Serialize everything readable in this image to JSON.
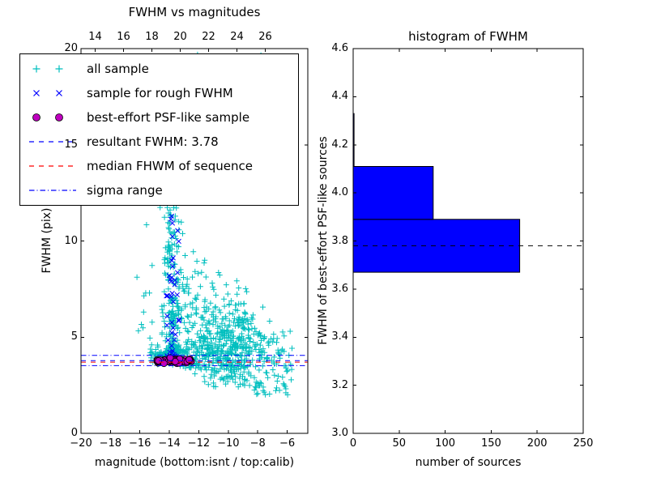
{
  "window": {
    "background": "#ffffff"
  },
  "chart_data": [
    {
      "type": "scatter",
      "title": "FWHM vs magnitudes",
      "xlabel": "magnitude (bottom:isnt / top:calib)",
      "ylabel": "FWHM (pix)",
      "xlim": [
        -20,
        -4.6
      ],
      "ylim": [
        0,
        20
      ],
      "top_xlim": [
        13,
        29
      ],
      "grid": false,
      "legend_position": "upper left",
      "xticks": {
        "values": [
          -20,
          -18,
          -16,
          -14,
          -12,
          -10,
          -8,
          -6
        ],
        "labels": [
          "−20",
          "−18",
          "−16",
          "−14",
          "−12",
          "−10",
          "−8",
          "−6"
        ]
      },
      "top_xticks": {
        "values": [
          14,
          16,
          18,
          20,
          22,
          24,
          26
        ],
        "labels": [
          "14",
          "16",
          "18",
          "20",
          "22",
          "24",
          "26"
        ]
      },
      "yticks": {
        "values": [
          0,
          5,
          10,
          15,
          20
        ],
        "labels": [
          "0",
          "5",
          "10",
          "15",
          "20"
        ]
      },
      "seed": 7,
      "series": [
        {
          "name": "all sample",
          "kind": "scatter",
          "marker": "plus",
          "color": "#00bfbf",
          "clusters": [
            {
              "n": 240,
              "mag": [
                "gauss",
                -13.8,
                0.33,
                -14.65,
                -13.05
              ],
              "fwhm": [
                "powlow",
                3.8,
                12.6,
                2.2
              ]
            },
            {
              "n": 430,
              "mag": [
                "gauss",
                -9.9,
                1.05,
                -12.4,
                -6.6
              ],
              "fwhm": [
                "gauss",
                4.5,
                1.25,
                2.4,
                9.0
              ]
            },
            {
              "n": 120,
              "mag": [
                "uniform",
                -13.4,
                -11.3
              ],
              "fwhm": [
                "powlow",
                3.4,
                9.5,
                1.8
              ]
            },
            {
              "n": 55,
              "mag": [
                "uniform",
                -13.9,
                -7.6
              ],
              "fwhm": [
                "uniform",
                12.0,
                20.0
              ]
            },
            {
              "n": 95,
              "mag": [
                "uniform",
                -15.3,
                -12.2
              ],
              "fwhm": [
                "gauss",
                4.05,
                0.3,
                3.5,
                5.0
              ]
            },
            {
              "n": 75,
              "mag": [
                "uniform",
                -8.3,
                -5.6
              ],
              "fwhm": [
                "uniform",
                2.0,
                5.4
              ]
            },
            {
              "n": 14,
              "mag": [
                "uniform",
                -16.3,
                -14.7
              ],
              "fwhm": [
                "uniform",
                3.4,
                11.0
              ]
            }
          ]
        },
        {
          "name": "sample for rough FWHM",
          "kind": "scatter",
          "marker": "cross",
          "color": "#0000ff",
          "clusters": [
            {
              "n": 46,
              "mag": [
                "gauss",
                -13.75,
                0.22,
                -14.3,
                -13.2
              ],
              "fwhm": [
                "powlow",
                3.9,
                11.5,
                2.0
              ]
            }
          ]
        },
        {
          "name": "best-effort PSF-like sample",
          "kind": "scatter",
          "marker": "circle",
          "color": "#bf00bf",
          "edge": "#000000",
          "clusters": [
            {
              "n": 60,
              "mag": [
                "uniform",
                -14.85,
                -12.5
              ],
              "fwhm": [
                "gauss",
                3.78,
                0.07,
                3.63,
                3.95
              ]
            }
          ]
        },
        {
          "name": "resultant FWHM: 3.78",
          "kind": "hline",
          "y": [
            3.78
          ],
          "color": "#0000ff",
          "linestyle": "dashed"
        },
        {
          "name": "median FHWM of sequence",
          "kind": "hline",
          "y": [
            3.7
          ],
          "color": "#ff0000",
          "linestyle": "dashed"
        },
        {
          "name": "sigma range",
          "kind": "hline",
          "y": [
            3.52,
            4.05
          ],
          "color": "#0000ff",
          "linestyle": "dashdot"
        }
      ]
    },
    {
      "type": "bar",
      "orientation": "horizontal",
      "title": "histogram of FWHM",
      "xlabel": "number of sources",
      "ylabel": "FWHM of best-effort PSF-like sources",
      "xlim": [
        0,
        250
      ],
      "ylim": [
        3.0,
        4.6
      ],
      "grid": false,
      "xticks": {
        "values": [
          0,
          50,
          100,
          150,
          200,
          250
        ],
        "labels": [
          "0",
          "50",
          "100",
          "150",
          "200",
          "250"
        ]
      },
      "yticks": {
        "values": [
          3.0,
          3.2,
          3.4,
          3.6,
          3.8,
          4.0,
          4.2,
          4.4,
          4.6
        ],
        "labels": [
          "3.0",
          "3.2",
          "3.4",
          "3.6",
          "3.8",
          "4.0",
          "4.2",
          "4.4",
          "4.6"
        ]
      },
      "bar_color": "#0000ff",
      "bar_edge": "#000000",
      "bin_edges": [
        3.67,
        3.89,
        4.11,
        4.33
      ],
      "counts": [
        181,
        87,
        1
      ],
      "median_line": {
        "y": 3.78,
        "color": "#000000",
        "linestyle": "dashed"
      }
    }
  ]
}
